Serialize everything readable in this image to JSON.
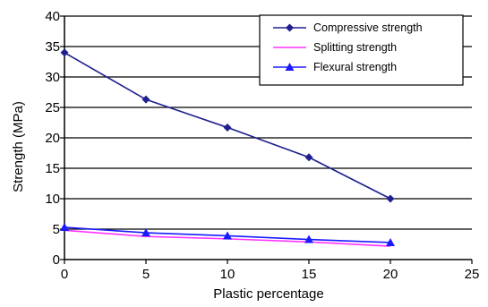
{
  "chart_data": {
    "type": "line",
    "title": "",
    "xlabel": "Plastic percentage",
    "ylabel": "Strength (MPa)",
    "xlim": [
      0,
      25
    ],
    "ylim": [
      0,
      40
    ],
    "x_ticks": [
      "0",
      "5",
      "10",
      "15",
      "20",
      "25"
    ],
    "y_ticks": [
      "0",
      "5",
      "10",
      "15",
      "20",
      "25",
      "30",
      "35",
      "40"
    ],
    "grid": "horizontal",
    "legend_position": "top-right",
    "series": [
      {
        "name": "Compressive strength",
        "x": [
          0,
          5,
          10,
          15,
          20
        ],
        "values": [
          34,
          26.3,
          21.7,
          16.8,
          10
        ],
        "color": "#1f1f8f",
        "marker": "diamond"
      },
      {
        "name": "Splitting strength",
        "x": [
          0,
          5,
          10,
          15,
          20
        ],
        "values": [
          4.8,
          3.8,
          3.4,
          2.9,
          2.2
        ],
        "color": "#ff33ff",
        "marker": "none"
      },
      {
        "name": "Flexural strength",
        "x": [
          0,
          5,
          10,
          15,
          20
        ],
        "values": [
          5.3,
          4.4,
          3.9,
          3.3,
          2.8
        ],
        "color": "#1a1aff",
        "marker": "triangle"
      }
    ]
  }
}
